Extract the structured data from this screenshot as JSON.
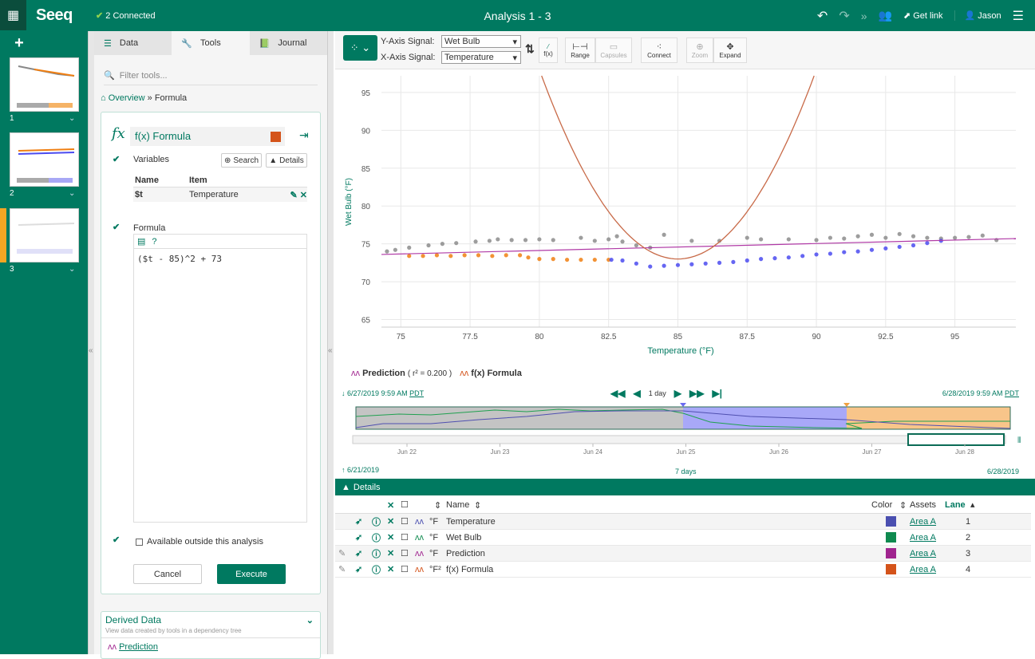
{
  "topbar": {
    "connected": "2 Connected",
    "title": "Analysis 1 - 3",
    "get_link": "Get link",
    "user": "Jason",
    "logo": "Seeq"
  },
  "worksheets": [
    {
      "num": "1"
    },
    {
      "num": "2"
    },
    {
      "num": "3"
    }
  ],
  "tools_panel": {
    "tabs": [
      {
        "label": "Data"
      },
      {
        "label": "Tools"
      },
      {
        "label": "Journal"
      }
    ],
    "filter_placeholder": "Filter tools...",
    "breadcrumb": {
      "home": "Overview",
      "sep": "»",
      "current": "Formula"
    },
    "formula": {
      "name": "f(x) Formula",
      "color": "#d4531a",
      "variables_label": "Variables",
      "search": "Search",
      "details": "Details",
      "var_headers": {
        "name": "Name",
        "item": "Item"
      },
      "variables": [
        {
          "name": "$t",
          "item": "Temperature"
        }
      ],
      "formula_label": "Formula",
      "code": "($t - 85)^2 + 73",
      "available_label": "Available outside this analysis",
      "cancel": "Cancel",
      "execute": "Execute"
    },
    "derived": {
      "title": "Derived Data",
      "subtitle": "View data created by tools in a dependency tree",
      "item": "Prediction"
    }
  },
  "toolbar": {
    "y_label": "Y-Axis Signal:",
    "y_value": "Wet Bulb",
    "x_label": "X-Axis Signal:",
    "x_value": "Temperature",
    "fx": "f(x)",
    "range": "Range",
    "capsules": "Capsules",
    "connect": "Connect",
    "zoom": "Zoom",
    "expand": "Expand"
  },
  "legend": {
    "prediction": "Prediction",
    "r2": "( r² = 0.200 )",
    "formula": "f(x) Formula"
  },
  "timebar": {
    "start": "6/27/2019 9:59 AM",
    "end": "6/28/2019 9:59 AM",
    "tz": "PDT",
    "step": "1 day",
    "overview_start": "6/21/2019",
    "overview_end": "6/28/2019",
    "overview_span": "7 days",
    "ticks": [
      "Jun 22",
      "Jun 23",
      "Jun 24",
      "Jun 25",
      "Jun 26",
      "Jun 27",
      "Jun 28"
    ]
  },
  "details": {
    "title": "Details",
    "headers": {
      "name": "Name",
      "color": "Color",
      "assets": "Assets",
      "lane": "Lane"
    },
    "rows": [
      {
        "unit": "°F",
        "name": "Temperature",
        "color": "#4a4fb0",
        "asset": "Area A",
        "lane": "1",
        "editable": false
      },
      {
        "unit": "°F",
        "name": "Wet Bulb",
        "color": "#0f8a4f",
        "asset": "Area A",
        "lane": "2",
        "editable": false
      },
      {
        "unit": "°F",
        "name": "Prediction",
        "color": "#a0248f",
        "asset": "Area A",
        "lane": "3",
        "editable": true
      },
      {
        "unit": "°F²",
        "name": "f(x) Formula",
        "color": "#d4531a",
        "asset": "Area A",
        "lane": "4",
        "editable": true
      }
    ]
  },
  "chart_data": {
    "type": "scatter",
    "xlabel": "Temperature (°F)",
    "ylabel": "Wet Bulb (°F)",
    "xlim": [
      74.3,
      97.2
    ],
    "ylim": [
      64,
      97.2
    ],
    "xticks": [
      75,
      77.5,
      80,
      82.5,
      85,
      87.5,
      90,
      92.5,
      95
    ],
    "yticks": [
      65,
      70,
      75,
      80,
      85,
      90,
      95
    ],
    "grid": true,
    "colors": {
      "gray": "#8c8c8c",
      "orange": "#f07f12",
      "blue": "#4b4bf0",
      "prediction": "#b03aa6",
      "formula": "#c86a48"
    },
    "series": [
      {
        "group": "gray",
        "points": [
          [
            74.5,
            74.0
          ],
          [
            74.8,
            74.2
          ],
          [
            75.3,
            74.5
          ],
          [
            76,
            74.8
          ],
          [
            76.5,
            75
          ],
          [
            77,
            75.1
          ],
          [
            77.7,
            75.3
          ],
          [
            78.2,
            75.4
          ],
          [
            78.5,
            75.6
          ],
          [
            79,
            75.5
          ],
          [
            79.5,
            75.5
          ],
          [
            80,
            75.6
          ],
          [
            80.5,
            75.5
          ],
          [
            81.5,
            75.8
          ],
          [
            82,
            75.4
          ],
          [
            82.5,
            75.6
          ],
          [
            82.8,
            76.0
          ],
          [
            83,
            75.3
          ],
          [
            83.5,
            74.8
          ],
          [
            84,
            74.5
          ],
          [
            84.5,
            76.2
          ],
          [
            85.5,
            75.4
          ],
          [
            86.5,
            75.4
          ],
          [
            87.5,
            75.8
          ],
          [
            88,
            75.6
          ],
          [
            89,
            75.6
          ],
          [
            90,
            75.5
          ],
          [
            90.5,
            75.8
          ],
          [
            91,
            75.7
          ],
          [
            91.5,
            76.0
          ],
          [
            92,
            76.2
          ],
          [
            92.5,
            75.8
          ],
          [
            93,
            76.3
          ],
          [
            93.5,
            76.0
          ],
          [
            94,
            75.8
          ],
          [
            94.5,
            75.7
          ],
          [
            95,
            75.8
          ],
          [
            95.5,
            75.9
          ],
          [
            96,
            76.1
          ],
          [
            96.5,
            75.5
          ]
        ]
      },
      {
        "group": "orange",
        "points": [
          [
            75.3,
            73.4
          ],
          [
            75.8,
            73.4
          ],
          [
            76.3,
            73.5
          ],
          [
            76.8,
            73.4
          ],
          [
            77.3,
            73.5
          ],
          [
            77.8,
            73.5
          ],
          [
            78.3,
            73.4
          ],
          [
            78.8,
            73.5
          ],
          [
            79.3,
            73.5
          ],
          [
            79.6,
            73.2
          ],
          [
            80,
            73.0
          ],
          [
            80.5,
            73.0
          ],
          [
            81,
            72.9
          ],
          [
            81.5,
            72.9
          ],
          [
            82,
            72.9
          ],
          [
            82.5,
            72.9
          ]
        ]
      },
      {
        "group": "blue",
        "points": [
          [
            82.6,
            72.9
          ],
          [
            83,
            72.8
          ],
          [
            83.5,
            72.4
          ],
          [
            84,
            72.0
          ],
          [
            84.5,
            72.1
          ],
          [
            85,
            72.2
          ],
          [
            85.5,
            72.3
          ],
          [
            86,
            72.4
          ],
          [
            86.5,
            72.5
          ],
          [
            87,
            72.6
          ],
          [
            87.5,
            72.8
          ],
          [
            88,
            73.0
          ],
          [
            88.5,
            73.1
          ],
          [
            89,
            73.2
          ],
          [
            89.5,
            73.4
          ],
          [
            90,
            73.6
          ],
          [
            90.5,
            73.7
          ],
          [
            91,
            73.9
          ],
          [
            91.5,
            74.0
          ],
          [
            92,
            74.2
          ],
          [
            92.5,
            74.4
          ],
          [
            93,
            74.6
          ],
          [
            93.5,
            74.8
          ],
          [
            94,
            75.1
          ],
          [
            94.5,
            75.4
          ]
        ]
      }
    ],
    "prediction_line": {
      "name": "Prediction",
      "points": [
        [
          74.3,
          73.6
        ],
        [
          97.2,
          75.7
        ]
      ]
    },
    "formula_curve": {
      "name": "f(x) Formula",
      "expression": "(t - 85)^2 + 73"
    }
  }
}
